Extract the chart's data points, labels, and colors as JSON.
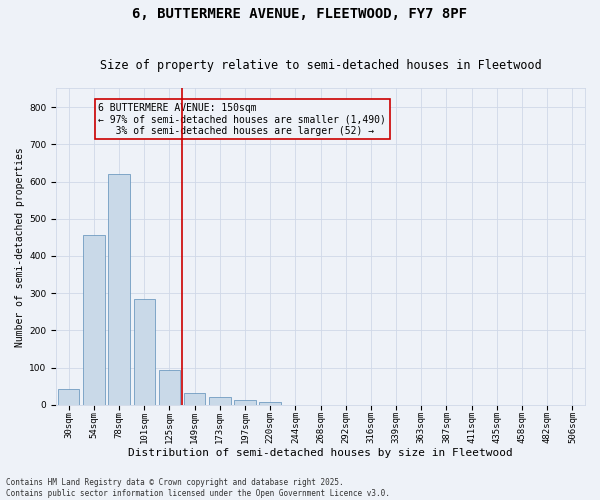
{
  "title1": "6, BUTTERMERE AVENUE, FLEETWOOD, FY7 8PF",
  "title2": "Size of property relative to semi-detached houses in Fleetwood",
  "xlabel": "Distribution of semi-detached houses by size in Fleetwood",
  "ylabel": "Number of semi-detached properties",
  "categories": [
    "30sqm",
    "54sqm",
    "78sqm",
    "101sqm",
    "125sqm",
    "149sqm",
    "173sqm",
    "197sqm",
    "220sqm",
    "244sqm",
    "268sqm",
    "292sqm",
    "316sqm",
    "339sqm",
    "363sqm",
    "387sqm",
    "411sqm",
    "435sqm",
    "458sqm",
    "482sqm",
    "506sqm"
  ],
  "values": [
    42,
    456,
    620,
    285,
    93,
    33,
    20,
    12,
    7,
    0,
    0,
    0,
    0,
    0,
    0,
    0,
    0,
    0,
    0,
    0,
    0
  ],
  "bar_color": "#c9d9e8",
  "bar_edge_color": "#5b8db8",
  "grid_color": "#d0d8e8",
  "bg_color": "#eef2f8",
  "vline_color": "#cc0000",
  "annotation_text": "6 BUTTERMERE AVENUE: 150sqm\n← 97% of semi-detached houses are smaller (1,490)\n   3% of semi-detached houses are larger (52) →",
  "annotation_box_color": "#cc0000",
  "ylim": [
    0,
    850
  ],
  "yticks": [
    0,
    100,
    200,
    300,
    400,
    500,
    600,
    700,
    800
  ],
  "footnote": "Contains HM Land Registry data © Crown copyright and database right 2025.\nContains public sector information licensed under the Open Government Licence v3.0.",
  "title1_fontsize": 10,
  "title2_fontsize": 8.5,
  "xlabel_fontsize": 8,
  "ylabel_fontsize": 7,
  "tick_fontsize": 6.5,
  "annotation_fontsize": 7,
  "footnote_fontsize": 5.5
}
